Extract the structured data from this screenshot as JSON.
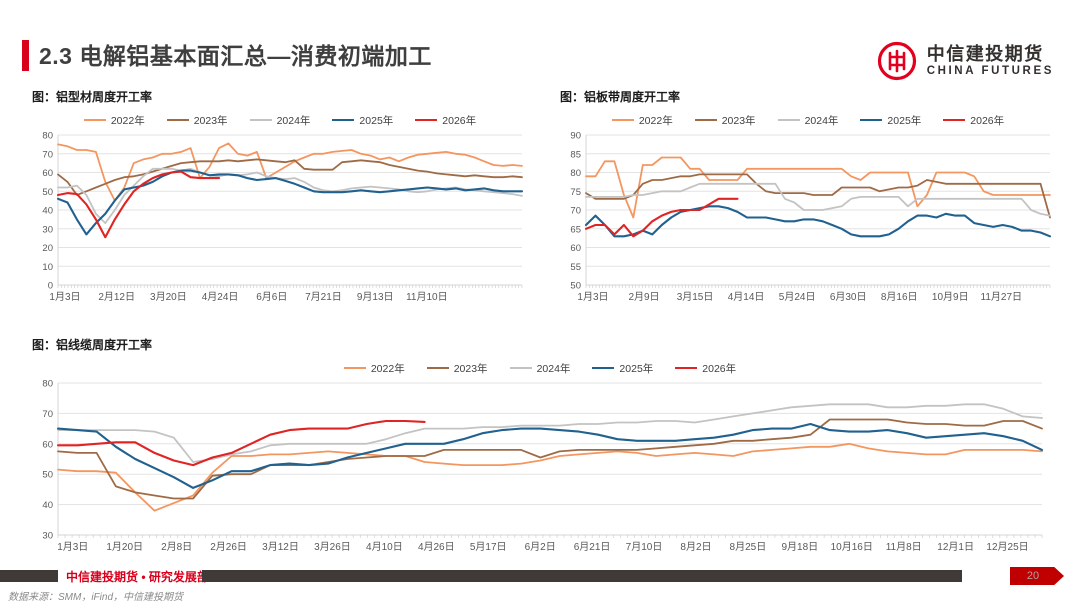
{
  "header": {
    "title": "2.3 电解铝基本面汇总—消费初端加工",
    "logo": {
      "cn": "中信建投期货",
      "en": "CHINA FUTURES"
    }
  },
  "colors": {
    "citic_red": "#D9001B",
    "footer_bar": "#3F3A37",
    "page_badge_red": "#C00000",
    "series_2022": "#F4965F",
    "series_2023": "#9E6B46",
    "series_2024": "#C3C3C3",
    "series_2025": "#21618F",
    "series_2026": "#DF2423"
  },
  "footer": {
    "dept": "中信建投期货 • 研究发展部",
    "source": "数据来源：SMM，iFind，中信建投期货",
    "page": "20"
  },
  "chart_data": [
    {
      "type": "line",
      "title": "图：铝型材周度开工率",
      "ylim": [
        0,
        80
      ],
      "ytick_step": 10,
      "grid": true,
      "legend_position": "top",
      "x_label_end": 0.78,
      "x_labels": [
        "1月3日",
        "2月12日",
        "3月20日",
        "4月24日",
        "6月6日",
        "7月21日",
        "9月13日",
        "11月10日"
      ],
      "series": [
        {
          "name": "2022年",
          "color": "#F4965F",
          "width": 1.8,
          "values": [
            75,
            74,
            72,
            72,
            71,
            55,
            45,
            52,
            65,
            67,
            68,
            70,
            70,
            71,
            73,
            57,
            63,
            73,
            75.5,
            70,
            69,
            71,
            57,
            60,
            63,
            66,
            68,
            70,
            70,
            71,
            71.5,
            72,
            70,
            69,
            67,
            68,
            66,
            68,
            69.5,
            70,
            70.5,
            71,
            70,
            69.5,
            68,
            66,
            64,
            63.5,
            64,
            63.5
          ]
        },
        {
          "name": "2023年",
          "color": "#9E6B46",
          "width": 1.8,
          "values": [
            59,
            55,
            48,
            50,
            52,
            54,
            56,
            57.5,
            58,
            59,
            60.5,
            62,
            63.5,
            65,
            65.5,
            66,
            66,
            66,
            66.5,
            66,
            66.5,
            67,
            66.5,
            66,
            65.5,
            66.5,
            62,
            61.5,
            61.5,
            61.5,
            65.5,
            66,
            66.5,
            66,
            65.5,
            64,
            63,
            62,
            61,
            60.5,
            59.5,
            59,
            58.5,
            58,
            58.5,
            58,
            57.5,
            57.5,
            58,
            57.5
          ]
        },
        {
          "name": "2024年",
          "color": "#C3C3C3",
          "width": 1.8,
          "values": [
            52,
            52,
            53,
            48,
            38,
            33,
            40,
            48,
            53,
            58,
            62,
            62,
            62,
            61,
            62,
            60,
            58.5,
            58,
            59,
            58.5,
            59,
            60,
            58,
            57,
            56.5,
            57,
            55,
            52,
            50.5,
            50,
            50.5,
            51.5,
            52,
            52.5,
            52,
            51.5,
            51,
            50,
            49.5,
            50,
            51,
            51.5,
            52,
            51,
            50.5,
            50,
            49.5,
            49,
            48.5,
            47.5
          ]
        },
        {
          "name": "2025年",
          "color": "#21618F",
          "width": 2.1,
          "values": [
            46,
            44,
            35,
            27,
            33,
            38,
            45,
            51,
            52,
            53,
            55,
            58,
            60,
            61,
            61,
            60,
            58.5,
            59,
            59,
            58.5,
            57,
            56,
            56.5,
            57,
            55.5,
            54,
            52,
            50,
            49.5,
            49.5,
            49.5,
            50,
            50.5,
            50,
            49.5,
            50,
            50.5,
            51,
            51.5,
            52,
            51.5,
            51,
            51.5,
            50.5,
            51,
            51.5,
            50.5,
            50,
            50,
            50
          ]
        },
        {
          "name": "2026年",
          "color": "#DF2423",
          "width": 2.1,
          "values": [
            48,
            49,
            48.5,
            43,
            35,
            25.5,
            35,
            43,
            50,
            54,
            57,
            59,
            60,
            60.5,
            57.5,
            57,
            57,
            57
          ]
        }
      ]
    },
    {
      "type": "line",
      "title": "图：铝板带周度开工率",
      "ylim": [
        50,
        90
      ],
      "ytick_step": 5,
      "grid": true,
      "legend_position": "top",
      "x_label_end": 0.88,
      "x_labels": [
        "1月3日",
        "2月9日",
        "3月15日",
        "4月14日",
        "5月24日",
        "6月30日",
        "8月16日",
        "10月9日",
        "11月27日"
      ],
      "series": [
        {
          "name": "2022年",
          "color": "#F4965F",
          "width": 1.8,
          "values": [
            79,
            79,
            83,
            83,
            74,
            68,
            82,
            82,
            84,
            84,
            84,
            81,
            81,
            78,
            78,
            78,
            78,
            81,
            81,
            81,
            81,
            81,
            81,
            81,
            81,
            81,
            81,
            81,
            79,
            78,
            80,
            80,
            80,
            80,
            80,
            71,
            74,
            80,
            80,
            80,
            80,
            79,
            75,
            74,
            74,
            74,
            74,
            74,
            74,
            74
          ]
        },
        {
          "name": "2023年",
          "color": "#9E6B46",
          "width": 1.8,
          "values": [
            74.5,
            73,
            73,
            73,
            73,
            74,
            77,
            78,
            78,
            78.5,
            79,
            79,
            79.5,
            79.5,
            79.5,
            79.5,
            79.5,
            79.5,
            77,
            75,
            74.5,
            74.5,
            74.5,
            74.5,
            74,
            74,
            74,
            76,
            76,
            76,
            76,
            75,
            75.5,
            76,
            76,
            76.5,
            78,
            77.5,
            77,
            77,
            77,
            77,
            77,
            77,
            77,
            77,
            77,
            77,
            77,
            68
          ]
        },
        {
          "name": "2024年",
          "color": "#C3C3C3",
          "width": 1.8,
          "values": [
            73.5,
            73.5,
            73.5,
            73.5,
            73.5,
            74,
            74,
            74.5,
            75,
            75,
            75,
            76,
            77,
            77,
            77,
            77,
            77,
            77,
            77,
            77,
            77,
            73,
            72,
            70,
            70,
            70,
            70.5,
            71,
            73,
            73.5,
            73.5,
            73.5,
            73.5,
            73.5,
            71,
            73,
            73,
            73,
            73,
            73,
            73,
            73,
            73,
            73,
            73,
            73,
            73,
            70,
            69,
            68.5
          ]
        },
        {
          "name": "2025年",
          "color": "#21618F",
          "width": 2.1,
          "values": [
            66,
            68.5,
            66,
            63,
            63,
            63.5,
            64.5,
            63.5,
            66,
            68,
            69.5,
            70,
            70.5,
            71,
            71,
            70.5,
            69.5,
            68,
            68,
            68,
            67.5,
            67,
            67,
            67.5,
            67.5,
            67,
            66,
            65,
            63.5,
            63,
            63,
            63,
            63.5,
            65,
            67,
            68.5,
            68.5,
            68,
            69,
            68.5,
            68.5,
            66.5,
            66,
            65.5,
            66,
            65.5,
            64.5,
            64.5,
            64,
            63
          ]
        },
        {
          "name": "2026年",
          "color": "#DF2423",
          "width": 2.1,
          "values": [
            65,
            66,
            66,
            63.5,
            66,
            63,
            64.5,
            67,
            68.5,
            69.5,
            70,
            70,
            70,
            71.5,
            73,
            73,
            73
          ]
        }
      ]
    },
    {
      "type": "line",
      "title": "图：铝线缆周度开工率",
      "ylim": [
        30,
        80
      ],
      "ytick_step": 10,
      "grid": true,
      "legend_position": "top",
      "x_label_end": 0.95,
      "x_labels": [
        "1月3日",
        "1月20日",
        "2月8日",
        "2月26日",
        "3月12日",
        "3月26日",
        "4月10日",
        "4月26日",
        "5月17日",
        "6月2日",
        "6月21日",
        "7月10日",
        "8月2日",
        "8月25日",
        "9月18日",
        "10月16日",
        "11月8日",
        "12月1日",
        "12月25日"
      ],
      "series": [
        {
          "name": "2022年",
          "color": "#F4965F",
          "width": 1.8,
          "values": [
            51.5,
            51,
            51,
            50.5,
            44,
            38,
            40.5,
            43,
            50.5,
            56,
            56,
            56.5,
            56.5,
            57,
            57.5,
            57,
            56.5,
            56,
            56,
            54,
            53.5,
            53,
            53,
            53,
            53.5,
            54.5,
            56,
            56.5,
            57,
            57.5,
            57,
            56,
            56.5,
            57,
            56.5,
            56,
            57.5,
            58,
            58.5,
            59,
            59,
            60,
            58.5,
            57.5,
            57,
            56.5,
            56.5,
            58,
            58,
            58,
            58,
            57.5
          ]
        },
        {
          "name": "2023年",
          "color": "#9E6B46",
          "width": 1.8,
          "values": [
            57.5,
            57,
            57,
            46,
            44,
            43,
            42,
            42,
            49.5,
            50,
            50,
            53,
            53,
            53,
            54,
            55,
            55.5,
            56,
            56,
            56,
            58,
            58,
            58,
            58,
            58,
            55.5,
            57.5,
            58,
            58,
            58,
            58,
            58.5,
            59,
            59.5,
            60,
            61,
            61,
            61.5,
            62,
            63,
            68,
            68,
            68,
            68,
            67,
            66.5,
            66.5,
            66,
            66,
            67.5,
            67.5,
            65
          ]
        },
        {
          "name": "2024年",
          "color": "#C3C3C3",
          "width": 1.8,
          "values": [
            64.5,
            64.5,
            64.5,
            64.5,
            64.5,
            64,
            62,
            54,
            55,
            56.5,
            57.5,
            59.5,
            60,
            60,
            60,
            60,
            60,
            61.5,
            63.5,
            65,
            65,
            65,
            65.5,
            65.5,
            66,
            66,
            66,
            66.5,
            66.5,
            67,
            67,
            67.5,
            67.5,
            67,
            68,
            69,
            70,
            71,
            72,
            72.5,
            73,
            73,
            73,
            72,
            72,
            72.5,
            72.5,
            73,
            73,
            71.5,
            69,
            68.5
          ]
        },
        {
          "name": "2025年",
          "color": "#21618F",
          "width": 2.1,
          "values": [
            65,
            64.5,
            64,
            59,
            55,
            52,
            49,
            45.5,
            48,
            51,
            51,
            53,
            53.5,
            53,
            53.5,
            55.5,
            57,
            58.5,
            60,
            60,
            60,
            61.5,
            63.5,
            64.5,
            65,
            65,
            64.5,
            64,
            63,
            61.5,
            61,
            61,
            61,
            61.5,
            62,
            63,
            64.5,
            65,
            65,
            66.5,
            64.5,
            64,
            64,
            64.5,
            63.5,
            62,
            62.5,
            63,
            63.5,
            62.5,
            61,
            58
          ]
        },
        {
          "name": "2026年",
          "color": "#DF2423",
          "width": 2.1,
          "values": [
            59.5,
            59.5,
            60,
            60.5,
            60.5,
            57,
            54.5,
            53,
            55.5,
            57,
            60,
            63,
            64.5,
            65,
            65,
            65,
            66.5,
            67.5,
            67.5,
            67.2
          ]
        }
      ]
    }
  ]
}
